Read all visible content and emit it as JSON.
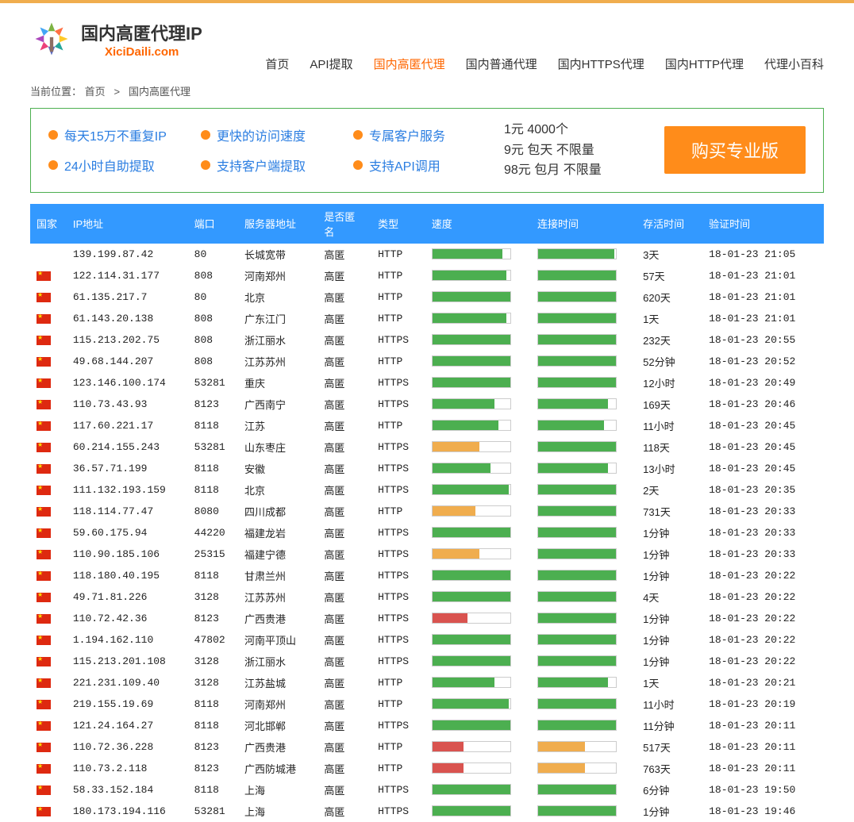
{
  "site": {
    "title": "国内高匿代理IP",
    "subtitle": "XiciDaili.com"
  },
  "nav": [
    {
      "label": "首页",
      "active": false
    },
    {
      "label": "API提取",
      "active": false
    },
    {
      "label": "国内高匿代理",
      "active": true
    },
    {
      "label": "国内普通代理",
      "active": false
    },
    {
      "label": "国内HTTPS代理",
      "active": false
    },
    {
      "label": "国内HTTP代理",
      "active": false
    },
    {
      "label": "代理小百科",
      "active": false
    }
  ],
  "breadcrumb": {
    "prefix": "当前位置：",
    "home": "首页",
    "sep": ">",
    "current": "国内高匿代理"
  },
  "promo": {
    "features": [
      "每天15万不重复IP",
      "更快的访问速度",
      "专属客户服务",
      "24小时自助提取",
      "支持客户端提取",
      "支持API调用"
    ],
    "price_lines": [
      "1元 4000个",
      "9元 包天 不限量",
      "98元 包月 不限量"
    ],
    "buy_label": "购买专业版"
  },
  "table": {
    "columns": [
      "国家",
      "IP地址",
      "端口",
      "服务器地址",
      "是否匿名",
      "类型",
      "速度",
      "连接时间",
      "存活时间",
      "验证时间"
    ],
    "colors": {
      "green": "#4CAF50",
      "yellow": "#f0ad4e",
      "red": "#d9534f"
    },
    "rows": [
      {
        "flag": false,
        "ip": "139.199.87.42",
        "port": "80",
        "loc": "长城宽带",
        "anon": "高匿",
        "type": "HTTP",
        "speed": {
          "pct": 90,
          "c": "green"
        },
        "conn": {
          "pct": 98,
          "c": "green"
        },
        "alive": "3天",
        "verify": "18-01-23 21:05"
      },
      {
        "flag": true,
        "ip": "122.114.31.177",
        "port": "808",
        "loc": "河南郑州",
        "anon": "高匿",
        "type": "HTTP",
        "speed": {
          "pct": 95,
          "c": "green"
        },
        "conn": {
          "pct": 100,
          "c": "green"
        },
        "alive": "57天",
        "verify": "18-01-23 21:01"
      },
      {
        "flag": true,
        "ip": "61.135.217.7",
        "port": "80",
        "loc": "北京",
        "anon": "高匿",
        "type": "HTTP",
        "speed": {
          "pct": 100,
          "c": "green"
        },
        "conn": {
          "pct": 100,
          "c": "green"
        },
        "alive": "620天",
        "verify": "18-01-23 21:01"
      },
      {
        "flag": true,
        "ip": "61.143.20.138",
        "port": "808",
        "loc": "广东江门",
        "anon": "高匿",
        "type": "HTTP",
        "speed": {
          "pct": 95,
          "c": "green"
        },
        "conn": {
          "pct": 100,
          "c": "green"
        },
        "alive": "1天",
        "verify": "18-01-23 21:01"
      },
      {
        "flag": true,
        "ip": "115.213.202.75",
        "port": "808",
        "loc": "浙江丽水",
        "anon": "高匿",
        "type": "HTTPS",
        "speed": {
          "pct": 100,
          "c": "green"
        },
        "conn": {
          "pct": 100,
          "c": "green"
        },
        "alive": "232天",
        "verify": "18-01-23 20:55"
      },
      {
        "flag": true,
        "ip": "49.68.144.207",
        "port": "808",
        "loc": "江苏苏州",
        "anon": "高匿",
        "type": "HTTP",
        "speed": {
          "pct": 100,
          "c": "green"
        },
        "conn": {
          "pct": 100,
          "c": "green"
        },
        "alive": "52分钟",
        "verify": "18-01-23 20:52"
      },
      {
        "flag": true,
        "ip": "123.146.100.174",
        "port": "53281",
        "loc": "重庆",
        "anon": "高匿",
        "type": "HTTPS",
        "speed": {
          "pct": 100,
          "c": "green"
        },
        "conn": {
          "pct": 100,
          "c": "green"
        },
        "alive": "12小时",
        "verify": "18-01-23 20:49"
      },
      {
        "flag": true,
        "ip": "110.73.43.93",
        "port": "8123",
        "loc": "广西南宁",
        "anon": "高匿",
        "type": "HTTPS",
        "speed": {
          "pct": 80,
          "c": "green"
        },
        "conn": {
          "pct": 90,
          "c": "green"
        },
        "alive": "169天",
        "verify": "18-01-23 20:46"
      },
      {
        "flag": true,
        "ip": "117.60.221.17",
        "port": "8118",
        "loc": "江苏",
        "anon": "高匿",
        "type": "HTTP",
        "speed": {
          "pct": 85,
          "c": "green"
        },
        "conn": {
          "pct": 85,
          "c": "green"
        },
        "alive": "11小时",
        "verify": "18-01-23 20:45"
      },
      {
        "flag": true,
        "ip": "60.214.155.243",
        "port": "53281",
        "loc": "山东枣庄",
        "anon": "高匿",
        "type": "HTTPS",
        "speed": {
          "pct": 60,
          "c": "yellow"
        },
        "conn": {
          "pct": 100,
          "c": "green"
        },
        "alive": "118天",
        "verify": "18-01-23 20:45"
      },
      {
        "flag": true,
        "ip": "36.57.71.199",
        "port": "8118",
        "loc": "安徽",
        "anon": "高匿",
        "type": "HTTPS",
        "speed": {
          "pct": 75,
          "c": "green"
        },
        "conn": {
          "pct": 90,
          "c": "green"
        },
        "alive": "13小时",
        "verify": "18-01-23 20:45"
      },
      {
        "flag": true,
        "ip": "111.132.193.159",
        "port": "8118",
        "loc": "北京",
        "anon": "高匿",
        "type": "HTTPS",
        "speed": {
          "pct": 98,
          "c": "green"
        },
        "conn": {
          "pct": 100,
          "c": "green"
        },
        "alive": "2天",
        "verify": "18-01-23 20:35"
      },
      {
        "flag": true,
        "ip": "118.114.77.47",
        "port": "8080",
        "loc": "四川成都",
        "anon": "高匿",
        "type": "HTTP",
        "speed": {
          "pct": 55,
          "c": "yellow"
        },
        "conn": {
          "pct": 100,
          "c": "green"
        },
        "alive": "731天",
        "verify": "18-01-23 20:33"
      },
      {
        "flag": true,
        "ip": "59.60.175.94",
        "port": "44220",
        "loc": "福建龙岩",
        "anon": "高匿",
        "type": "HTTPS",
        "speed": {
          "pct": 100,
          "c": "green"
        },
        "conn": {
          "pct": 100,
          "c": "green"
        },
        "alive": "1分钟",
        "verify": "18-01-23 20:33"
      },
      {
        "flag": true,
        "ip": "110.90.185.106",
        "port": "25315",
        "loc": "福建宁德",
        "anon": "高匿",
        "type": "HTTPS",
        "speed": {
          "pct": 60,
          "c": "yellow"
        },
        "conn": {
          "pct": 100,
          "c": "green"
        },
        "alive": "1分钟",
        "verify": "18-01-23 20:33"
      },
      {
        "flag": true,
        "ip": "118.180.40.195",
        "port": "8118",
        "loc": "甘肃兰州",
        "anon": "高匿",
        "type": "HTTPS",
        "speed": {
          "pct": 100,
          "c": "green"
        },
        "conn": {
          "pct": 100,
          "c": "green"
        },
        "alive": "1分钟",
        "verify": "18-01-23 20:22"
      },
      {
        "flag": true,
        "ip": "49.71.81.226",
        "port": "3128",
        "loc": "江苏苏州",
        "anon": "高匿",
        "type": "HTTPS",
        "speed": {
          "pct": 100,
          "c": "green"
        },
        "conn": {
          "pct": 100,
          "c": "green"
        },
        "alive": "4天",
        "verify": "18-01-23 20:22"
      },
      {
        "flag": true,
        "ip": "110.72.42.36",
        "port": "8123",
        "loc": "广西贵港",
        "anon": "高匿",
        "type": "HTTPS",
        "speed": {
          "pct": 45,
          "c": "red"
        },
        "conn": {
          "pct": 100,
          "c": "green"
        },
        "alive": "1分钟",
        "verify": "18-01-23 20:22"
      },
      {
        "flag": true,
        "ip": "1.194.162.110",
        "port": "47802",
        "loc": "河南平顶山",
        "anon": "高匿",
        "type": "HTTPS",
        "speed": {
          "pct": 100,
          "c": "green"
        },
        "conn": {
          "pct": 100,
          "c": "green"
        },
        "alive": "1分钟",
        "verify": "18-01-23 20:22"
      },
      {
        "flag": true,
        "ip": "115.213.201.108",
        "port": "3128",
        "loc": "浙江丽水",
        "anon": "高匿",
        "type": "HTTPS",
        "speed": {
          "pct": 100,
          "c": "green"
        },
        "conn": {
          "pct": 100,
          "c": "green"
        },
        "alive": "1分钟",
        "verify": "18-01-23 20:22"
      },
      {
        "flag": true,
        "ip": "221.231.109.40",
        "port": "3128",
        "loc": "江苏盐城",
        "anon": "高匿",
        "type": "HTTP",
        "speed": {
          "pct": 80,
          "c": "green"
        },
        "conn": {
          "pct": 90,
          "c": "green"
        },
        "alive": "1天",
        "verify": "18-01-23 20:21"
      },
      {
        "flag": true,
        "ip": "219.155.19.69",
        "port": "8118",
        "loc": "河南郑州",
        "anon": "高匿",
        "type": "HTTP",
        "speed": {
          "pct": 98,
          "c": "green"
        },
        "conn": {
          "pct": 100,
          "c": "green"
        },
        "alive": "11小时",
        "verify": "18-01-23 20:19"
      },
      {
        "flag": true,
        "ip": "121.24.164.27",
        "port": "8118",
        "loc": "河北邯郸",
        "anon": "高匿",
        "type": "HTTPS",
        "speed": {
          "pct": 100,
          "c": "green"
        },
        "conn": {
          "pct": 100,
          "c": "green"
        },
        "alive": "11分钟",
        "verify": "18-01-23 20:11"
      },
      {
        "flag": true,
        "ip": "110.72.36.228",
        "port": "8123",
        "loc": "广西贵港",
        "anon": "高匿",
        "type": "HTTP",
        "speed": {
          "pct": 40,
          "c": "red"
        },
        "conn": {
          "pct": 60,
          "c": "yellow"
        },
        "alive": "517天",
        "verify": "18-01-23 20:11"
      },
      {
        "flag": true,
        "ip": "110.73.2.118",
        "port": "8123",
        "loc": "广西防城港",
        "anon": "高匿",
        "type": "HTTP",
        "speed": {
          "pct": 40,
          "c": "red"
        },
        "conn": {
          "pct": 60,
          "c": "yellow"
        },
        "alive": "763天",
        "verify": "18-01-23 20:11"
      },
      {
        "flag": true,
        "ip": "58.33.152.184",
        "port": "8118",
        "loc": "上海",
        "anon": "高匿",
        "type": "HTTPS",
        "speed": {
          "pct": 100,
          "c": "green"
        },
        "conn": {
          "pct": 100,
          "c": "green"
        },
        "alive": "6分钟",
        "verify": "18-01-23 19:50"
      },
      {
        "flag": true,
        "ip": "180.173.194.116",
        "port": "53281",
        "loc": "上海",
        "anon": "高匿",
        "type": "HTTPS",
        "speed": {
          "pct": 100,
          "c": "green"
        },
        "conn": {
          "pct": 100,
          "c": "green"
        },
        "alive": "1分钟",
        "verify": "18-01-23 19:46"
      }
    ]
  }
}
